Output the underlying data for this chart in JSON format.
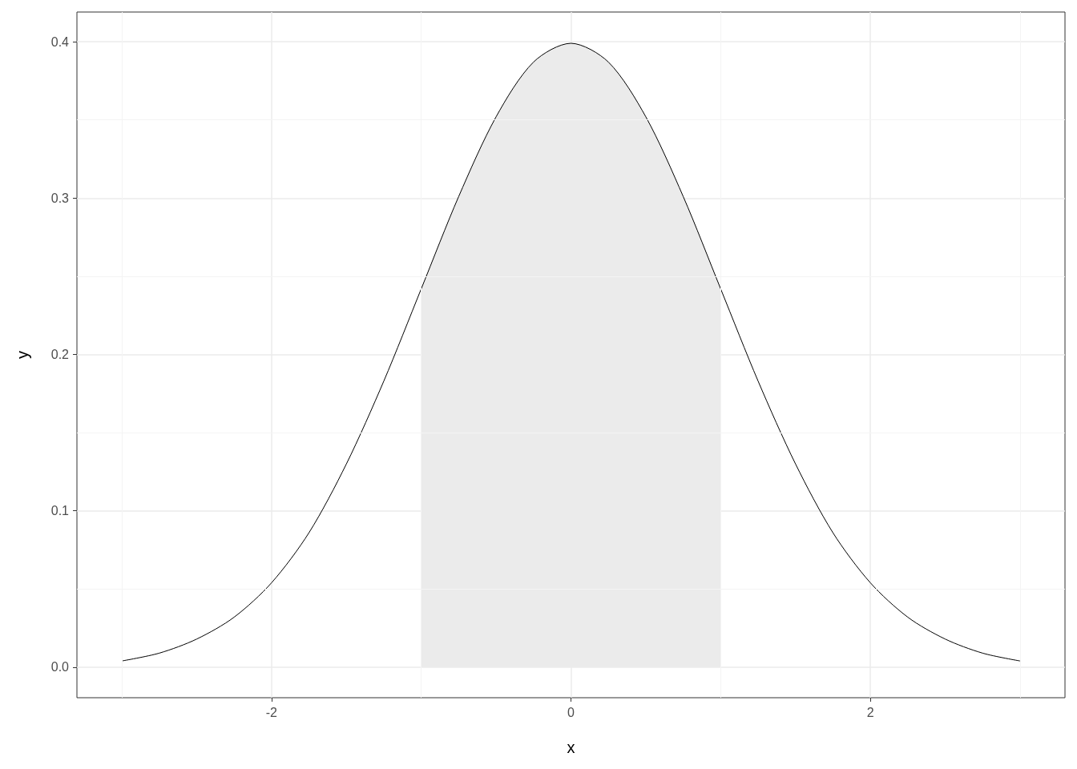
{
  "chart_data": {
    "type": "line",
    "xlabel": "x",
    "ylabel": "y",
    "xlim": [
      -3.3,
      3.3
    ],
    "ylim": [
      -0.0195,
      0.419
    ],
    "xticks": [
      -2,
      0,
      2
    ],
    "yticks": [
      {
        "value": 0,
        "label": "0.0"
      },
      0.1,
      0.2,
      0.3,
      0.4
    ],
    "grid": true,
    "marker": "none",
    "series": [
      {
        "type": "area",
        "color": "#ebebeb",
        "x": [
          -1,
          -0.75,
          -0.5,
          -0.25,
          0,
          0.25,
          0.5,
          0.75,
          1
        ],
        "values": [
          0.242,
          0.301,
          0.352,
          0.387,
          0.399,
          0.387,
          0.352,
          0.301,
          0.242
        ]
      },
      {
        "color": "#000000",
        "x": [
          -3,
          -2.75,
          -2.5,
          -2.25,
          -2,
          -1.75,
          -1.5,
          -1.25,
          -1,
          -0.75,
          -0.5,
          -0.25,
          0,
          0.25,
          0.5,
          0.75,
          1,
          1.25,
          1.5,
          1.75,
          2,
          2.25,
          2.5,
          2.75,
          3
        ],
        "values": [
          0.004,
          0.009,
          0.018,
          0.032,
          0.054,
          0.086,
          0.13,
          0.183,
          0.242,
          0.301,
          0.352,
          0.387,
          0.399,
          0.387,
          0.352,
          0.301,
          0.242,
          0.183,
          0.13,
          0.086,
          0.054,
          0.032,
          0.018,
          0.009,
          0.004
        ]
      }
    ]
  }
}
